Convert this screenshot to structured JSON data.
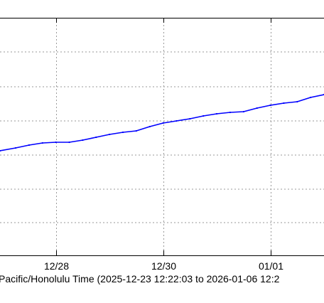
{
  "chart_data": {
    "type": "line",
    "title": "",
    "xlabel": "Pacific/Honolulu Time (2025-12-23 12:22:03 to 2026-01-06 12:2",
    "ylabel": "",
    "x_tick_labels": [
      "12/28",
      "12/30",
      "01/01"
    ],
    "x_tick_dates": [
      "2025-12-28",
      "2025-12-30",
      "2026-01-01"
    ],
    "xlim": [
      "2025-12-26T23:00",
      "2026-01-02T00:00"
    ],
    "grid": true,
    "series": [
      {
        "color": "#0000ff",
        "points": [
          {
            "x": "2025-12-26T23:00",
            "y": 212
          },
          {
            "x": "2025-12-27T06:00",
            "y": 208
          },
          {
            "x": "2025-12-27T12:00",
            "y": 204
          },
          {
            "x": "2025-12-27T18:00",
            "y": 201
          },
          {
            "x": "2025-12-28T00:00",
            "y": 200
          },
          {
            "x": "2025-12-28T06:00",
            "y": 200
          },
          {
            "x": "2025-12-28T12:00",
            "y": 197
          },
          {
            "x": "2025-12-28T18:00",
            "y": 193
          },
          {
            "x": "2025-12-29T00:00",
            "y": 189
          },
          {
            "x": "2025-12-29T06:00",
            "y": 186
          },
          {
            "x": "2025-12-29T12:00",
            "y": 184
          },
          {
            "x": "2025-12-29T18:00",
            "y": 178
          },
          {
            "x": "2025-12-30T00:00",
            "y": 173
          },
          {
            "x": "2025-12-30T06:00",
            "y": 170
          },
          {
            "x": "2025-12-30T12:00",
            "y": 167
          },
          {
            "x": "2025-12-30T18:00",
            "y": 163
          },
          {
            "x": "2025-12-31T00:00",
            "y": 160
          },
          {
            "x": "2025-12-31T06:00",
            "y": 158
          },
          {
            "x": "2025-12-31T12:00",
            "y": 157
          },
          {
            "x": "2025-12-31T18:00",
            "y": 152
          },
          {
            "x": "2026-01-01T00:00",
            "y": 148
          },
          {
            "x": "2026-01-01T06:00",
            "y": 145
          },
          {
            "x": "2026-01-01T12:00",
            "y": 143
          },
          {
            "x": "2026-01-01T18:00",
            "y": 137
          },
          {
            "x": "2026-01-02T00:00",
            "y": 133
          }
        ]
      }
    ]
  }
}
